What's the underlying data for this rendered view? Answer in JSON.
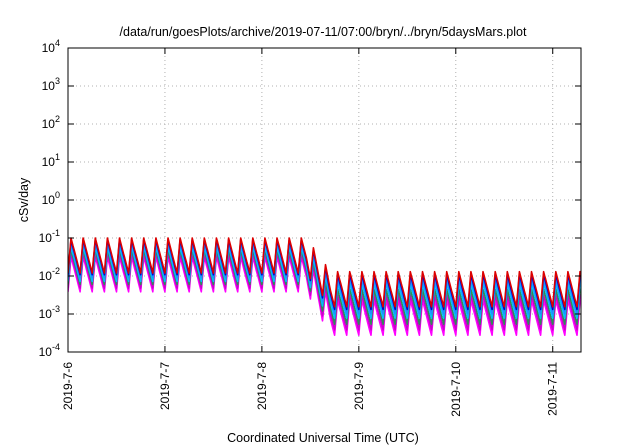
{
  "chart_data": {
    "type": "line",
    "title": "/data/run/goesPlots/archive/2019-07-11/07:00/bryn/../bryn/5daysMars.plot",
    "xlabel": "Coordinated Universal Time (UTC)",
    "ylabel": "cSv/day",
    "y_scale": "log",
    "ylim": [
      0.0001,
      10000
    ],
    "xlim": [
      "2019-07-06 00:00",
      "2019-07-11 07:00"
    ],
    "grid": true,
    "legend": "none",
    "x_tick_labels": [
      "2019-7-6",
      "2019-7-7",
      "2019-7-8",
      "2019-7-9",
      "2019-7-10",
      "2019-7-11"
    ],
    "y_ticks": [
      {
        "base": "10",
        "exp": "-4"
      },
      {
        "base": "10",
        "exp": "-3"
      },
      {
        "base": "10",
        "exp": "-2"
      },
      {
        "base": "10",
        "exp": "-1"
      },
      {
        "base": "10",
        "exp": "0"
      },
      {
        "base": "10",
        "exp": "1"
      },
      {
        "base": "10",
        "exp": "2"
      },
      {
        "base": "10",
        "exp": "3"
      },
      {
        "base": "10",
        "exp": "4"
      }
    ],
    "pattern": {
      "period_hours": 3,
      "change_time": "2019-07-08 14:00",
      "ratio_top": 0.3,
      "ratio_bottom": 0.12
    },
    "series": [
      {
        "color": "#ff00ff",
        "peak_before": 0.032,
        "peak_after": 0.0023
      },
      {
        "color": "#cc00cc",
        "peak_before": 0.04,
        "peak_after": 0.0032
      },
      {
        "color": "#2e8b57",
        "peak_before": 0.05,
        "peak_after": 0.0045
      },
      {
        "color": "#00bfff",
        "peak_before": 0.06,
        "peak_after": 0.0065
      },
      {
        "color": "#1e90ff",
        "peak_before": 0.075,
        "peak_after": 0.0085
      },
      {
        "color": "#0000cd",
        "peak_before": 0.09,
        "peak_after": 0.011
      },
      {
        "color": "#dd0000",
        "peak_before": 0.1,
        "peak_after": 0.013
      }
    ]
  }
}
